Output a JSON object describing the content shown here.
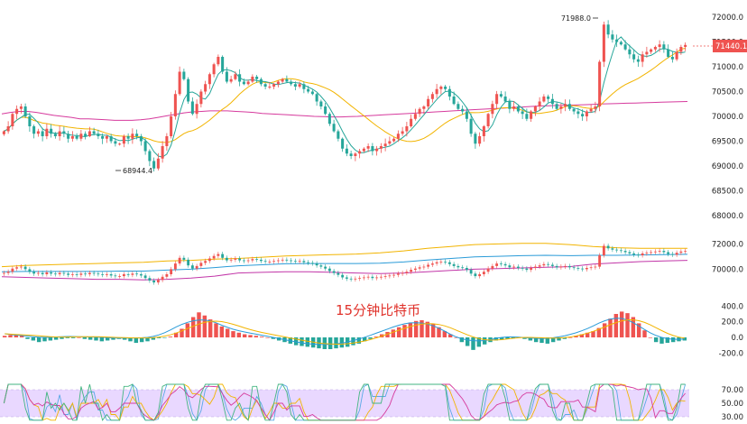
{
  "watermark_title": "15分钟比特币",
  "colors": {
    "up": "#ef5350",
    "down": "#26a69a",
    "ma_fast": "#26a69a",
    "ma_mid": "#f2b400",
    "ma_slow": "#d63a9d",
    "boll_upper": "#f2b400",
    "boll_mid": "#2a9bd8",
    "boll_lower": "#c236a8",
    "macd_dif": "#2a9bd8",
    "macd_dea": "#f2b400",
    "rsi_band": "#e9d8ff",
    "rsi1": "#5aa9e6",
    "rsi2": "#f2b400",
    "rsi3": "#d63a9d",
    "rsi4": "#43b581",
    "price_tag_bg": "#ef5350"
  },
  "chart_data": {
    "type": "candlestick",
    "panes": {
      "price": {
        "y_ticks": [
          "72000.0",
          "71500.0",
          "71000.0",
          "70500.0",
          "70000.0",
          "69500.0",
          "69000.0",
          "68500.0",
          "68000.0"
        ],
        "last_price_tag": "71440.1",
        "annotations": {
          "high": "71988.0",
          "low": "68944.4"
        }
      },
      "bollinger": {
        "y_ticks": [
          "72000.0",
          "70000.0"
        ]
      },
      "macd": {
        "y_ticks": [
          "400.0",
          "200.0",
          "0.0",
          "-200.0"
        ]
      },
      "rsi": {
        "y_ticks": [
          "70.00",
          "50.00",
          "30.00"
        ]
      }
    },
    "closes": [
      69700,
      69800,
      70050,
      70150,
      70200,
      70000,
      69800,
      69650,
      69700,
      69600,
      69750,
      69650,
      69600,
      69700,
      69650,
      69550,
      69600,
      69550,
      69650,
      69600,
      69700,
      69650,
      69600,
      69550,
      69600,
      69500,
      69450,
      69450,
      69600,
      69550,
      69650,
      69600,
      69500,
      69300,
      69100,
      68950,
      69150,
      69400,
      69600,
      70000,
      70450,
      70900,
      70750,
      70300,
      70050,
      70250,
      70500,
      70650,
      70850,
      71050,
      71200,
      70900,
      70700,
      70750,
      70850,
      70700,
      70650,
      70700,
      70800,
      70750,
      70650,
      70600,
      70600,
      70650,
      70700,
      70750,
      70700,
      70650,
      70600,
      70650,
      70550,
      70500,
      70450,
      70300,
      70200,
      70050,
      69850,
      69700,
      69550,
      69350,
      69250,
      69200,
      69250,
      69300,
      69350,
      69400,
      69300,
      69350,
      69400,
      69450,
      69500,
      69550,
      69650,
      69700,
      69800,
      69950,
      70050,
      70150,
      70200,
      70350,
      70450,
      70550,
      70600,
      70550,
      70400,
      70250,
      70150,
      70100,
      69950,
      69650,
      69450,
      69600,
      69800,
      70050,
      70250,
      70450,
      70400,
      70300,
      70150,
      70200,
      70100,
      70050,
      69950,
      70100,
      70200,
      70300,
      70400,
      70350,
      70250,
      70150,
      70200,
      70250,
      70150,
      70100,
      70050,
      70000,
      70100,
      70150,
      70200,
      71100,
      71850,
      71650,
      71550,
      71500,
      71450,
      71350,
      71250,
      71150,
      71100,
      71250,
      71300,
      71350,
      71400,
      71450,
      71350,
      71200,
      71150,
      71300,
      71400,
      71440
    ],
    "ma_slow": [
      70050,
      70080,
      70100,
      70100,
      70080,
      70050,
      70020,
      70000,
      69980,
      69950,
      69950,
      69940,
      69930,
      69920,
      69920,
      69920,
      69930,
      69950,
      69980,
      70010,
      70040,
      70070,
      70090,
      70100,
      70110,
      70110,
      70110,
      70100,
      70090,
      70080,
      70060,
      70050,
      70040,
      70030,
      70020,
      70010,
      70000,
      69995,
      69990,
      69990,
      69995,
      70000,
      70010,
      70020,
      70030,
      70040,
      70050,
      70060,
      70070,
      70080,
      70090,
      70100,
      70110,
      70120,
      70130,
      70140,
      70150,
      70160,
      70170,
      70180,
      70190,
      70200,
      70210,
      70215,
      70220,
      70225,
      70230,
      70235,
      70240,
      70250,
      70255,
      70260,
      70265,
      70270,
      70275,
      70280,
      70285,
      70290,
      70295,
      70300
    ],
    "bollinger": {
      "upper": [
        70200,
        70300,
        70350,
        70400,
        70450,
        70500,
        70550,
        70650,
        70700,
        70800,
        70850,
        70950,
        71050,
        71100,
        71150,
        71200,
        71300,
        71450,
        71650,
        71800,
        71950,
        72000,
        72050,
        72050,
        71950,
        71800,
        71700,
        71650,
        71650,
        71650
      ],
      "lower": [
        69400,
        69350,
        69300,
        69250,
        69200,
        69200,
        69150,
        69200,
        69300,
        69450,
        69700,
        69750,
        69800,
        69800,
        69750,
        69700,
        69650,
        69700,
        69800,
        69900,
        70000,
        70050,
        70100,
        70150,
        70200,
        70400,
        70500,
        70600,
        70650,
        70700
      ]
    },
    "macd_hist": [
      20,
      30,
      40,
      20,
      -20,
      -40,
      -60,
      -50,
      -40,
      -30,
      -20,
      -10,
      -10,
      0,
      -20,
      -30,
      -40,
      -50,
      -40,
      -30,
      -20,
      -30,
      -50,
      -70,
      -60,
      -50,
      -30,
      -10,
      -5,
      10,
      60,
      110,
      180,
      260,
      320,
      280,
      230,
      180,
      140,
      110,
      80,
      60,
      40,
      30,
      20,
      10,
      0,
      -20,
      -40,
      -60,
      -80,
      -100,
      -110,
      -120,
      -130,
      -140,
      -150,
      -150,
      -140,
      -130,
      -120,
      -100,
      -80,
      -50,
      -20,
      10,
      40,
      70,
      100,
      130,
      160,
      190,
      210,
      220,
      200,
      170,
      130,
      80,
      40,
      0,
      -60,
      -110,
      -160,
      -120,
      -90,
      -60,
      -40,
      -30,
      -20,
      -10,
      0,
      -20,
      -40,
      -60,
      -70,
      -80,
      -60,
      -40,
      -20,
      0,
      20,
      40,
      60,
      80,
      120,
      180,
      240,
      300,
      330,
      310,
      260,
      180,
      90,
      0,
      -60,
      -80,
      -70,
      -60,
      -50,
      -40
    ]
  }
}
